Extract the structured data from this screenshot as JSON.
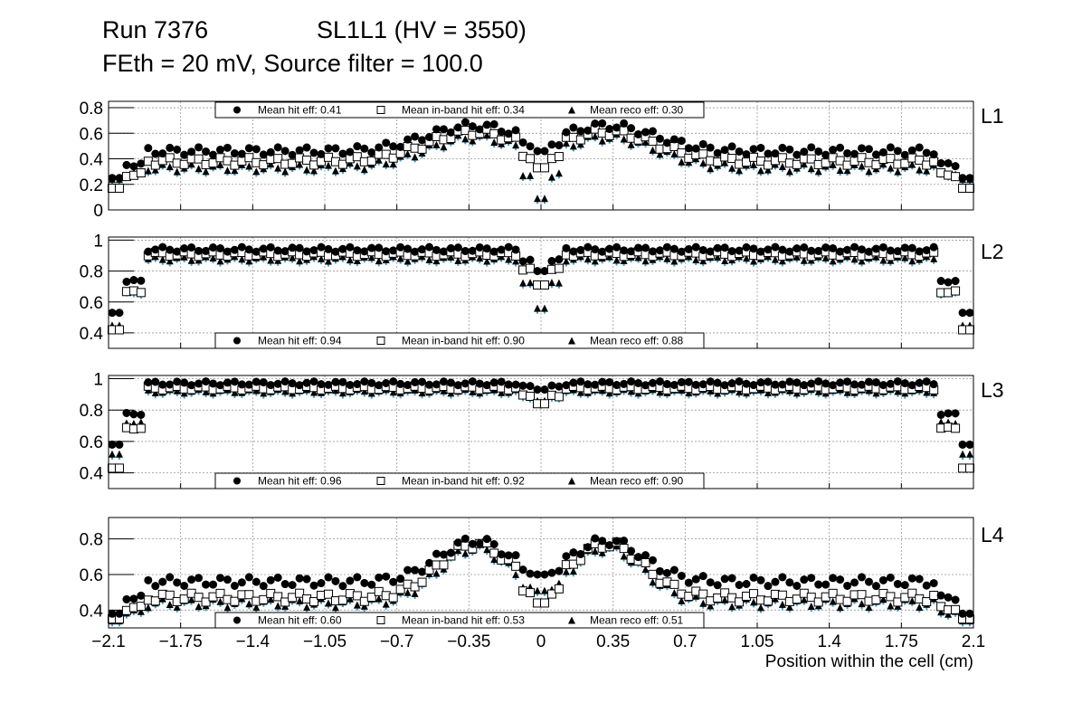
{
  "header": {
    "run": "Run 7376",
    "chamber": "SL1L1 (HV = 3550)",
    "settings": "FEth = 20 mV, Source filter = 100.0"
  },
  "chart_data": {
    "type": "scatter",
    "title": "Run 7376 SL1L1 (HV = 3550)",
    "subtitle": "FEth = 20 mV, Source filter = 100.0",
    "xlabel": "Position within the cell (cm)",
    "xlim": [
      -2.1,
      2.1
    ],
    "x_ticks": [
      "−2.1",
      "−1.75",
      "−1.4",
      "−1.05",
      "−0.7",
      "−0.35",
      "0",
      "0.35",
      "0.7",
      "1.05",
      "1.4",
      "1.75",
      "2.1"
    ],
    "grid": true,
    "colors": {
      "hit": "#000000",
      "hit_err": "#cc0000",
      "inband_err": "#6a0dad",
      "reco_err": "#29a8e0",
      "frame": "#000000",
      "grid": "#999999"
    },
    "legend_labels": {
      "hit": "Mean hit  eff: ",
      "inband": "Mean in-band hit eff: ",
      "reco": "Mean reco eff: "
    },
    "panels": [
      {
        "label": "L1",
        "ylim": [
          0,
          0.85
        ],
        "yticks": [
          "0",
          "0.2",
          "0.4",
          "0.6",
          "0.8"
        ],
        "legend_pos": "top",
        "mean_hit": "0.41",
        "mean_inband": "0.34",
        "mean_reco": "0.30",
        "shape": {
          "base": [
            0.46,
            0.38,
            0.33
          ],
          "peak": [
            0.2,
            0.23,
            0.24
          ],
          "peak_center": 0.32,
          "peak_width": 0.33,
          "edge": [
            0.25,
            0.17,
            0.24
          ],
          "gap": [
            0.46,
            0.33,
            0.09
          ],
          "wiggle": 0.03
        }
      },
      {
        "label": "L2",
        "ylim": [
          0.3,
          1.02
        ],
        "yticks": [
          "0.4",
          "0.6",
          "0.8",
          "1"
        ],
        "legend_pos": "bottom",
        "mean_hit": "0.94",
        "mean_inband": "0.90",
        "mean_reco": "0.88",
        "shape": {
          "base": [
            0.94,
            0.91,
            0.88
          ],
          "peak": [
            0.0,
            0.0,
            0.0
          ],
          "peak_center": 0.3,
          "peak_width": 0.3,
          "edge": [
            0.53,
            0.42,
            0.45
          ],
          "gap": [
            0.8,
            0.71,
            0.56
          ],
          "wiggle": 0.015
        }
      },
      {
        "label": "L3",
        "ylim": [
          0.3,
          1.02
        ],
        "yticks": [
          "0.4",
          "0.6",
          "0.8",
          "1"
        ],
        "legend_pos": "bottom",
        "mean_hit": "0.96",
        "mean_inband": "0.92",
        "mean_reco": "0.90",
        "shape": {
          "base": [
            0.97,
            0.94,
            0.92
          ],
          "peak": [
            0.0,
            0.0,
            0.0
          ],
          "peak_center": 0.3,
          "peak_width": 0.3,
          "edge": [
            0.58,
            0.43,
            0.52
          ],
          "gap": [
            0.93,
            0.84,
            0.86
          ],
          "wiggle": 0.012
        }
      },
      {
        "label": "L4",
        "ylim": [
          0.3,
          0.92
        ],
        "yticks": [
          "0.4",
          "0.6",
          "0.8"
        ],
        "legend_pos": "bottom",
        "mean_hit": "0.60",
        "mean_inband": "0.53",
        "mean_reco": "0.51",
        "shape": {
          "base": [
            0.56,
            0.47,
            0.44
          ],
          "peak": [
            0.23,
            0.3,
            0.31
          ],
          "peak_center": 0.32,
          "peak_width": 0.25,
          "edge": [
            0.38,
            0.35,
            0.34
          ],
          "gap": [
            0.6,
            0.44,
            0.51
          ],
          "wiggle": 0.025
        }
      }
    ]
  }
}
